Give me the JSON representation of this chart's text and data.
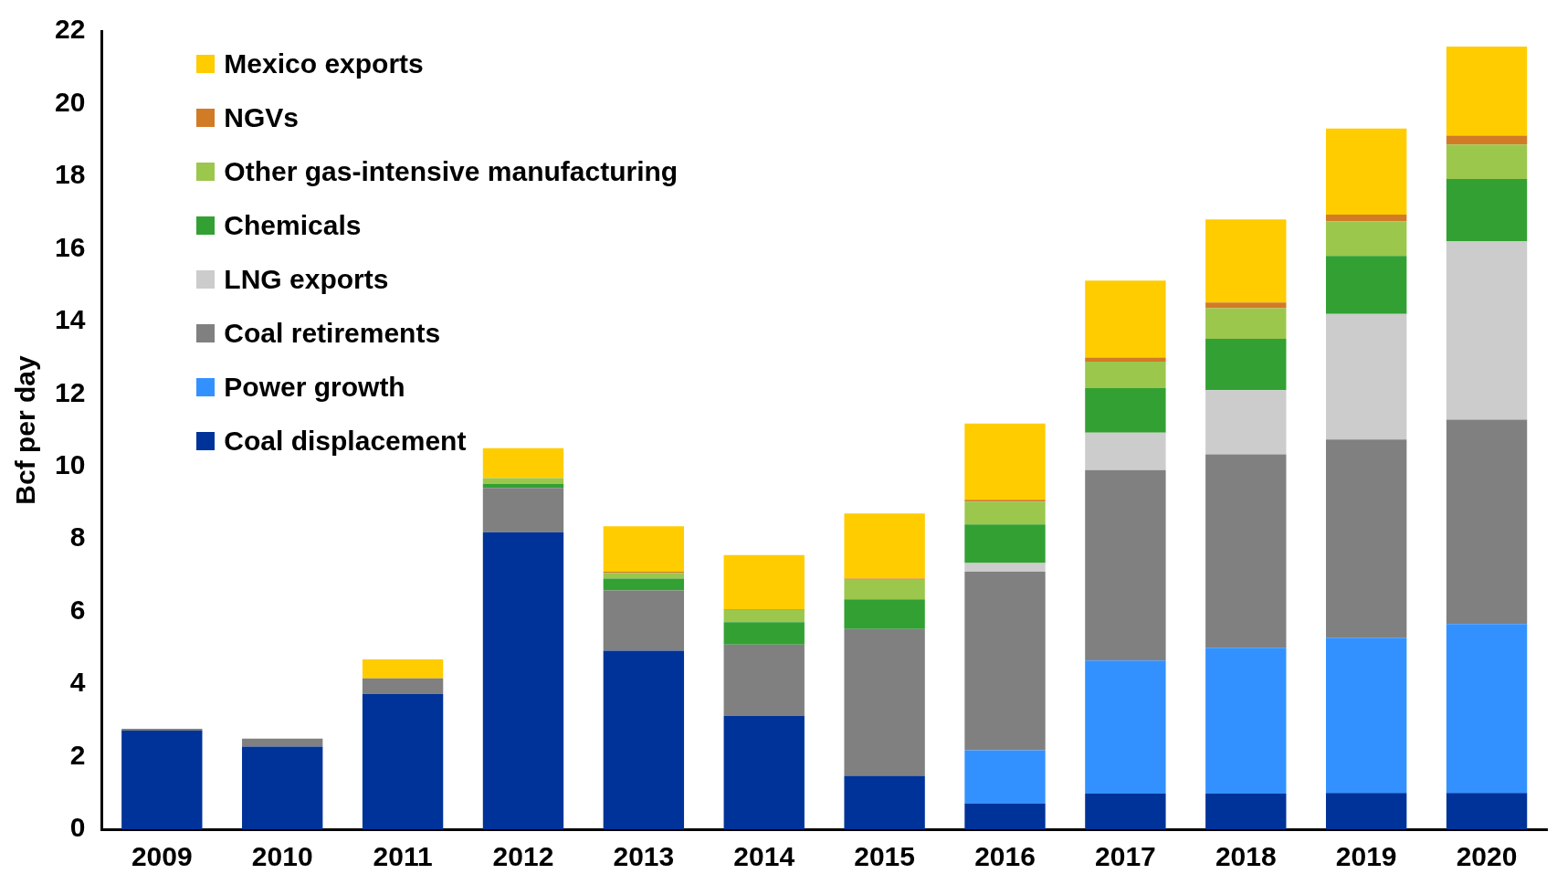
{
  "chart_data": {
    "type": "bar",
    "ylabel": "Bcf per day",
    "stacked": true,
    "categories": [
      "2009",
      "2010",
      "2011",
      "2012",
      "2013",
      "2014",
      "2015",
      "2016",
      "2017",
      "2018",
      "2019",
      "2020"
    ],
    "series": [
      {
        "name": "Coal displacement",
        "color": "#003399",
        "values": [
          2.72,
          2.28,
          3.73,
          8.19,
          4.92,
          3.13,
          1.47,
          0.71,
          0.98,
          0.98,
          1.0,
          1.0
        ]
      },
      {
        "name": "Power growth",
        "color": "#3391ff",
        "values": [
          0,
          0,
          0,
          0,
          0,
          0,
          0,
          1.47,
          3.67,
          4.02,
          4.28,
          4.66
        ]
      },
      {
        "name": "Coal retirements",
        "color": "#808080",
        "values": [
          0.05,
          0.22,
          0.43,
          1.22,
          1.66,
          1.96,
          4.05,
          4.92,
          5.25,
          5.33,
          5.46,
          5.63
        ]
      },
      {
        "name": "LNG exports",
        "color": "#cccccc",
        "values": [
          0,
          0,
          0,
          0,
          0,
          0,
          0,
          0.24,
          1.03,
          1.77,
          3.46,
          4.92
        ]
      },
      {
        "name": "Chemicals",
        "color": "#33a033",
        "values": [
          0,
          0,
          0,
          0.11,
          0.33,
          0.62,
          0.82,
          1.06,
          1.23,
          1.42,
          1.6,
          1.71
        ]
      },
      {
        "name": "Other gas-intensive manufacturing",
        "color": "#9bc74d",
        "values": [
          0,
          0,
          0,
          0.16,
          0.16,
          0.33,
          0.54,
          0.63,
          0.73,
          0.84,
          0.95,
          0.95
        ]
      },
      {
        "name": "NGVs",
        "color": "#d27b26",
        "values": [
          0,
          0,
          0,
          0,
          0.03,
          0.02,
          0.03,
          0.05,
          0.11,
          0.16,
          0.19,
          0.25
        ]
      },
      {
        "name": "Mexico exports",
        "color": "#ffcc00",
        "values": [
          0,
          0,
          0.52,
          0.82,
          1.25,
          1.5,
          1.79,
          2.1,
          2.12,
          2.29,
          2.37,
          2.45
        ]
      }
    ],
    "ylim": [
      0,
      22
    ],
    "yticks": [
      0,
      2,
      4,
      6,
      8,
      10,
      12,
      14,
      16,
      18,
      20,
      22
    ],
    "grid": false,
    "legend": "top left"
  }
}
